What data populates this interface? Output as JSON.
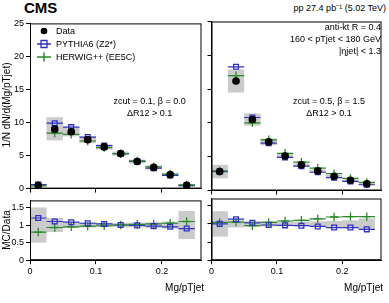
{
  "header": {
    "experiment": "CMS",
    "luminosity": "pp 27.4 pb⁻¹ (5.02 TeV)"
  },
  "chart_data": [
    {
      "type": "scatter",
      "y_label": "1/N dN/d(Mg/pTjet)",
      "x_label": "Mg/pTjet",
      "legend": "upper left",
      "annotations": [
        [
          "zcut = 0.1, β = 0.0",
          "ΔR12 > 0.1"
        ]
      ],
      "xlim": [
        0,
        0.26
      ],
      "xticks": [
        0,
        0.1,
        0.2
      ],
      "ylim": [
        0,
        25
      ],
      "yticks": [
        0,
        5,
        10,
        15,
        20,
        25
      ],
      "grid": false,
      "tick_labels": "y",
      "bins": [
        0,
        0.025,
        0.05,
        0.075,
        0.1,
        0.125,
        0.15,
        0.175,
        0.2,
        0.225,
        0.25
      ],
      "uncertainty_band": [
        [
          0.3,
          0.7
        ],
        [
          7.3,
          10.8
        ],
        [
          7.9,
          9.3
        ],
        [
          6.9,
          7.9
        ],
        [
          5.9,
          6.7
        ],
        [
          5.0,
          5.6
        ],
        [
          3.8,
          4.4
        ],
        [
          2.9,
          3.5
        ],
        [
          1.9,
          2.3
        ],
        [
          0.3,
          0.7
        ]
      ],
      "series": [
        {
          "name": "Data",
          "color": "#000000",
          "marker": "filled_circle",
          "values": [
            0.5,
            9.0,
            8.6,
            7.4,
            6.3,
            5.3,
            4.1,
            3.2,
            2.1,
            0.5
          ]
        },
        {
          "name": "PYTHIA6 (Z2*)",
          "color": "#3030c0",
          "marker": "open_square",
          "values": [
            0.6,
            9.9,
            9.3,
            7.8,
            6.5,
            5.3,
            4.1,
            3.1,
            2.0,
            0.45
          ]
        },
        {
          "name": "HERWIG++ (EE5C)",
          "color": "#2a8a2a",
          "marker": "open_cross",
          "values": [
            0.4,
            8.4,
            8.2,
            7.2,
            6.2,
            5.3,
            4.2,
            3.3,
            2.2,
            0.55
          ]
        }
      ],
      "ratio": {
        "y_label": "MC/Data",
        "ylim": [
          0,
          1.7
        ],
        "yticks": [
          0,
          0.5,
          1,
          1.5
        ],
        "tick_labels": true,
        "band": [
          [
            0.5,
            1.5
          ],
          [
            0.8,
            1.2
          ],
          [
            0.92,
            1.08
          ],
          [
            0.93,
            1.07
          ],
          [
            0.94,
            1.06
          ],
          [
            0.94,
            1.06
          ],
          [
            0.93,
            1.07
          ],
          [
            0.92,
            1.08
          ],
          [
            0.9,
            1.1
          ],
          [
            0.6,
            1.4
          ]
        ],
        "series": [
          {
            "color": "#3030c0",
            "marker": "open_square",
            "values": [
              1.2,
              1.1,
              1.08,
              1.05,
              1.03,
              1.0,
              0.99,
              0.97,
              0.95,
              0.9
            ]
          },
          {
            "color": "#2a8a2a",
            "marker": "open_cross",
            "values": [
              0.8,
              0.93,
              0.95,
              0.97,
              0.98,
              1.0,
              1.02,
              1.03,
              1.05,
              1.1
            ]
          }
        ]
      }
    },
    {
      "type": "scatter",
      "x_label": "Mg/pTjet",
      "annotations": [
        [
          "anti-kt R = 0.4",
          "160 < pTjet < 180 GeV",
          "|ηjet| < 1.3"
        ],
        [
          "zcut = 0.5, β = 1.5",
          "ΔR12 > 0.1"
        ]
      ],
      "xlim": [
        0,
        0.26
      ],
      "xticks": [
        0,
        0.1,
        0.2
      ],
      "ylim": [
        0,
        25
      ],
      "yticks": [
        0,
        5,
        10,
        15,
        20,
        25
      ],
      "grid": false,
      "tick_labels": false,
      "bins": [
        0,
        0.025,
        0.05,
        0.075,
        0.1,
        0.125,
        0.15,
        0.175,
        0.2,
        0.225,
        0.25
      ],
      "uncertainty_band": [
        [
          1.8,
          3.8
        ],
        [
          14.5,
          17.9
        ],
        [
          9.6,
          11.4
        ],
        [
          6.7,
          7.7
        ],
        [
          4.8,
          5.4
        ],
        [
          3.6,
          4.0
        ],
        [
          2.7,
          3.1
        ],
        [
          1.9,
          2.3
        ],
        [
          1.35,
          1.65
        ],
        [
          0.85,
          1.15
        ]
      ],
      "series": [
        {
          "name": "Data",
          "color": "#000000",
          "marker": "filled_circle",
          "values": [
            2.8,
            16.2,
            10.5,
            7.2,
            5.1,
            3.8,
            2.9,
            2.1,
            1.5,
            1.0
          ]
        },
        {
          "name": "PYTHIA6 (Z2*)",
          "color": "#3030c0",
          "marker": "open_square",
          "values": [
            2.8,
            18.3,
            10.8,
            7.0,
            4.9,
            3.6,
            2.7,
            1.9,
            1.35,
            0.85
          ]
        },
        {
          "name": "HERWIG++ (EE5C)",
          "color": "#2a8a2a",
          "marker": "open_cross",
          "values": [
            2.9,
            17.0,
            10.0,
            7.5,
            5.5,
            4.2,
            3.3,
            2.5,
            1.8,
            1.2
          ]
        }
      ],
      "ratio": {
        "ylim": [
          0,
          1.7
        ],
        "yticks": [
          0,
          0.5,
          1,
          1.5
        ],
        "tick_labels": "x",
        "band": [
          [
            0.65,
            1.35
          ],
          [
            0.9,
            1.1
          ],
          [
            0.92,
            1.08
          ],
          [
            0.93,
            1.07
          ],
          [
            0.94,
            1.06
          ],
          [
            0.94,
            1.06
          ],
          [
            0.93,
            1.07
          ],
          [
            0.92,
            1.08
          ],
          [
            0.9,
            1.1
          ],
          [
            0.85,
            1.15
          ]
        ],
        "series": [
          {
            "color": "#3030c0",
            "marker": "open_square",
            "values": [
              1.0,
              1.13,
              1.03,
              0.97,
              0.96,
              0.95,
              0.93,
              0.9,
              0.9,
              0.85
            ]
          },
          {
            "color": "#2a8a2a",
            "marker": "open_cross",
            "values": [
              1.04,
              1.05,
              0.95,
              1.04,
              1.08,
              1.1,
              1.14,
              1.19,
              1.2,
              1.2
            ]
          }
        ]
      }
    }
  ]
}
